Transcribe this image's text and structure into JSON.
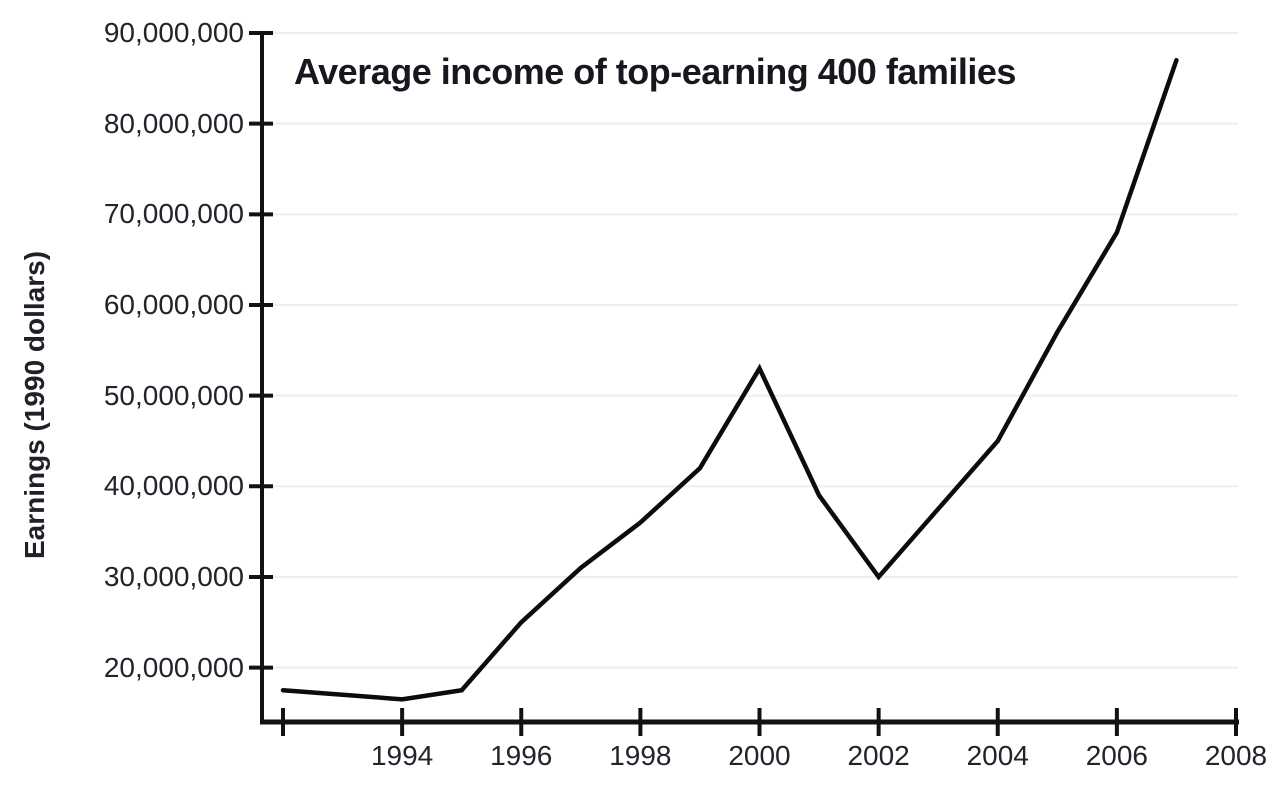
{
  "chart_data": {
    "type": "line",
    "title": "Average income of top-earning 400 families",
    "ylabel": "Earnings (1990 dollars)",
    "xlabel": "",
    "x": [
      1992,
      1993,
      1994,
      1995,
      1996,
      1997,
      1998,
      1999,
      2000,
      2001,
      2002,
      2003,
      2004,
      2005,
      2006,
      2007
    ],
    "series": [
      {
        "name": "Average income of top-earning 400 families",
        "values": [
          17500000,
          17000000,
          16500000,
          17500000,
          25000000,
          31000000,
          36000000,
          42000000,
          53000000,
          39000000,
          30000000,
          37500000,
          45000000,
          57000000,
          68000000,
          87000000
        ]
      }
    ],
    "y_ticks": [
      {
        "value": 20000000,
        "label": "20,000,000"
      },
      {
        "value": 30000000,
        "label": "30,000,000"
      },
      {
        "value": 40000000,
        "label": "40,000,000"
      },
      {
        "value": 50000000,
        "label": "50,000,000"
      },
      {
        "value": 60000000,
        "label": "60,000,000"
      },
      {
        "value": 70000000,
        "label": "70,000,000"
      },
      {
        "value": 80000000,
        "label": "80,000,000"
      },
      {
        "value": 90000000,
        "label": "90,000,000"
      }
    ],
    "x_ticks": [
      {
        "year": 1992,
        "label": ""
      },
      {
        "year": 1994,
        "label": "1994"
      },
      {
        "year": 1996,
        "label": "1996"
      },
      {
        "year": 1998,
        "label": "1998"
      },
      {
        "year": 2000,
        "label": "2000"
      },
      {
        "year": 2002,
        "label": "2002"
      },
      {
        "year": 2004,
        "label": "2004"
      },
      {
        "year": 2006,
        "label": "2006"
      },
      {
        "year": 2008,
        "label": "2008"
      }
    ],
    "x_range": [
      1992,
      2008
    ],
    "y_axis_range": [
      14000000,
      90000000
    ],
    "grid": "horizontal-light",
    "legend": "none",
    "colors": {
      "line": "#0c0c0c",
      "axis": "#121212",
      "text": "#23232b",
      "grid": "#eeeeee",
      "background": "#ffffff"
    }
  }
}
